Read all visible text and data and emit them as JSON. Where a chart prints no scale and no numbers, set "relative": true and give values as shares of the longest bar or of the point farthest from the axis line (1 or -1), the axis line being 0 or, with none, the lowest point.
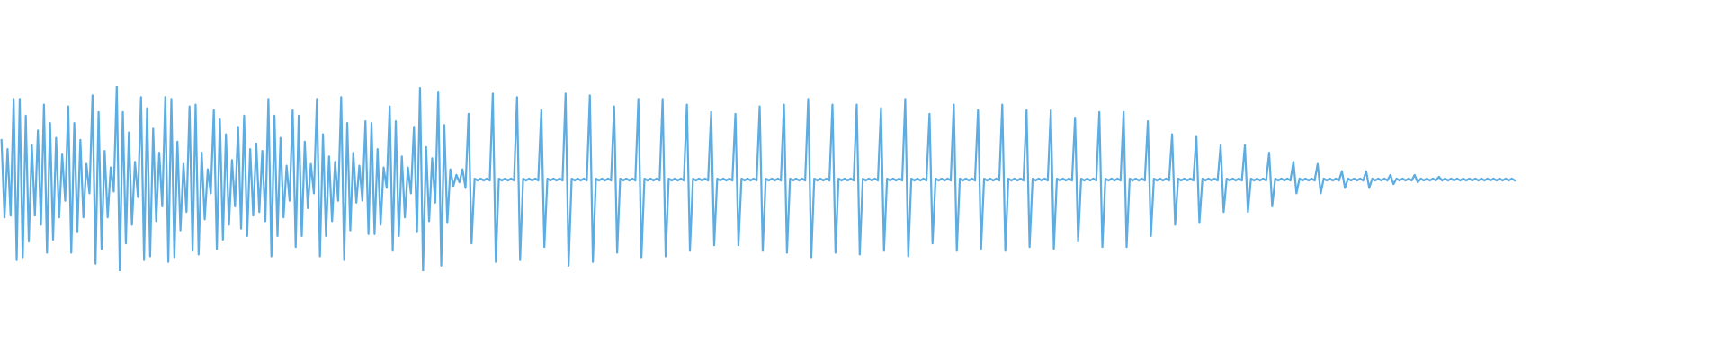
{
  "chart_data": {
    "type": "line",
    "relative": true,
    "color": "#5dade2",
    "categories": [
      null,
      null,
      null,
      null,
      null,
      null,
      null,
      null,
      null,
      null,
      null,
      null,
      null,
      null,
      null,
      null,
      null,
      null,
      null,
      null,
      null,
      null,
      null,
      null,
      null,
      null,
      null,
      null,
      null,
      null,
      null,
      null,
      null,
      null,
      null,
      null,
      null,
      null,
      null,
      null,
      null,
      null,
      null,
      null,
      null,
      null,
      null,
      null,
      null,
      null,
      null,
      null,
      null,
      null,
      null,
      null,
      null,
      null,
      null,
      null,
      null,
      null,
      null,
      null,
      null,
      null,
      null,
      null,
      null,
      null,
      null,
      null,
      null,
      null,
      null,
      null,
      null,
      null,
      null,
      null,
      null,
      null,
      null,
      null,
      null,
      null,
      null,
      null,
      null,
      null,
      null,
      null,
      null,
      null,
      null,
      null,
      null,
      null,
      null,
      null,
      null,
      null,
      null,
      null,
      null,
      null,
      null,
      null,
      null,
      null,
      null,
      null,
      null,
      null,
      null,
      null,
      null,
      null,
      null,
      null,
      null,
      null,
      null,
      null,
      null,
      null,
      null,
      null,
      null,
      null,
      null,
      null,
      null,
      null,
      null,
      null,
      null,
      null,
      null,
      null,
      null,
      null,
      null,
      null,
      null,
      null,
      null,
      null,
      null,
      null,
      null,
      null,
      null,
      null,
      null,
      null,
      null,
      null,
      null,
      null,
      null,
      null,
      null,
      null,
      null,
      null,
      null,
      null,
      null,
      null,
      null,
      null,
      null,
      null,
      null,
      null,
      null,
      null,
      null,
      null,
      null,
      null,
      null,
      null,
      null,
      null,
      null,
      null,
      null,
      null,
      null,
      null,
      null,
      null,
      null,
      null,
      null,
      null,
      null,
      null,
      null,
      null,
      null,
      null,
      null,
      null,
      null,
      null,
      null,
      null,
      null,
      null,
      null,
      null,
      null,
      null,
      null,
      null,
      null,
      null,
      null,
      null,
      null,
      null,
      null,
      null,
      null,
      null,
      null,
      null,
      null,
      null,
      null,
      null,
      null,
      null,
      null,
      null,
      null,
      null,
      null,
      null,
      null,
      null,
      null,
      null,
      null,
      null,
      null,
      null,
      null,
      null,
      null,
      null,
      null,
      null,
      null,
      null,
      null,
      null,
      null,
      null,
      null,
      null,
      null,
      null,
      null,
      null,
      null,
      null,
      null,
      null,
      null,
      null,
      null,
      null,
      null,
      null,
      null,
      null,
      null,
      null,
      null,
      null,
      null,
      null,
      null,
      null,
      null,
      null,
      null,
      null,
      null,
      null,
      null,
      null,
      null,
      null,
      null,
      null,
      null,
      null,
      null,
      null,
      null,
      null,
      null,
      null,
      null,
      null,
      null,
      null,
      null,
      null,
      null,
      null,
      null,
      null,
      null,
      null,
      null,
      null,
      null,
      null,
      null,
      null,
      null,
      null,
      null,
      null,
      null,
      null,
      null,
      null,
      null,
      null,
      null,
      null,
      null,
      null,
      null,
      null,
      null,
      null,
      null,
      null,
      null,
      null,
      null,
      null,
      null,
      null,
      null,
      null,
      null,
      null,
      null,
      null,
      null,
      null,
      null,
      null,
      null,
      null,
      null,
      null,
      null,
      null,
      null,
      null,
      null,
      null,
      null,
      null,
      null,
      null,
      null,
      null,
      null,
      null,
      null,
      null,
      null,
      null,
      null,
      null,
      null,
      null,
      null,
      null,
      null,
      null,
      null,
      null,
      null,
      null,
      null,
      null,
      null,
      null,
      null,
      null,
      null,
      null,
      null,
      null,
      null,
      null,
      null,
      null,
      null,
      null,
      null,
      null,
      null,
      null,
      null,
      null,
      null,
      null,
      null,
      null,
      null,
      null,
      null,
      null,
      null,
      null,
      null,
      null,
      null,
      null,
      null,
      null,
      null,
      null,
      null,
      null,
      null,
      null,
      null,
      null,
      null,
      null,
      null,
      null,
      null,
      null,
      null,
      null,
      null,
      null,
      null,
      null,
      null,
      null,
      null,
      null,
      null,
      null,
      null,
      null,
      null,
      null,
      null,
      null,
      null,
      null,
      null,
      null,
      null,
      null,
      null,
      null,
      null,
      null,
      null,
      null,
      null,
      null,
      null,
      null,
      null,
      null,
      null,
      null,
      null,
      null,
      null,
      null,
      null,
      null,
      null,
      null,
      null,
      null,
      null,
      null,
      null,
      null
    ],
    "values": [
      0.71,
      0.29,
      0.66,
      0.3,
      0.93,
      0.06,
      0.93,
      0.07,
      0.84,
      0.16,
      0.68,
      0.3,
      0.76,
      0.25,
      0.9,
      0.1,
      0.8,
      0.17,
      0.72,
      0.29,
      0.63,
      0.38,
      0.89,
      0.1,
      0.8,
      0.21,
      0.71,
      0.29,
      0.58,
      0.42,
      0.95,
      0.04,
      0.86,
      0.12,
      0.65,
      0.29,
      0.56,
      0.43,
      1.0,
      0,
      0.86,
      0.15,
      0.75,
      0.25,
      0.59,
      0.4,
      0.94,
      0.06,
      0.88,
      0.08,
      0.77,
      0.27,
      0.64,
      0.35,
      0.94,
      0.05,
      0.93,
      0.07,
      0.7,
      0.22,
      0.58,
      0.32,
      0.89,
      0.11,
      0.9,
      0.09,
      0.64,
      0.28,
      0.55,
      0.42,
      0.87,
      0.12,
      0.82,
      0.17,
      0.74,
      0.25,
      0.6,
      0.35,
      0.78,
      0.23,
      0.84,
      0.19,
      0.66,
      0.3,
      0.69,
      0.32,
      0.65,
      0.27,
      0.93,
      0.08,
      0.84,
      0.19,
      0.72,
      0.29,
      0.57,
      0.38,
      0.87,
      0.13,
      0.84,
      0.19,
      0.7,
      0.34,
      0.58,
      0.42,
      0.93,
      0.08,
      0.74,
      0.19,
      0.62,
      0.27,
      0.59,
      0.38,
      0.94,
      0.06,
      0.8,
      0.22,
      0.64,
      0.37,
      0.57,
      0.38,
      0.81,
      0.2,
      0.8,
      0.2,
      0.66,
      0.25,
      0.56,
      0.45,
      0.89,
      0.11,
      0.81,
      0.19,
      0.62,
      0.29,
      0.56,
      0.42,
      0.78,
      0.21,
      0.99,
      0,
      0.67,
      0.27,
      0.61,
      0.37,
      0.97,
      0.03,
      0.79,
      0.26,
      0.55,
      0.46,
      0.52,
      0.48,
      0.55,
      0.45,
      0.85,
      0.15,
      0.5,
      0.49,
      0.5,
      0.49,
      0.5,
      0.49,
      0.96,
      0.05,
      0.5,
      0.49,
      0.5,
      0.49,
      0.5,
      0.49,
      0.94,
      0.06,
      0.5,
      0.49,
      0.5,
      0.49,
      0.5,
      0.49,
      0.87,
      0.13,
      0.5,
      0.49,
      0.5,
      0.49,
      0.5,
      0.49,
      0.96,
      0.03,
      0.5,
      0.49,
      0.5,
      0.49,
      0.5,
      0.49,
      0.95,
      0.05,
      0.5,
      0.49,
      0.5,
      0.49,
      0.5,
      0.49,
      0.89,
      0.1,
      0.5,
      0.49,
      0.5,
      0.49,
      0.5,
      0.49,
      0.93,
      0.07,
      0.5,
      0.49,
      0.5,
      0.49,
      0.5,
      0.49,
      0.93,
      0.08,
      0.5,
      0.49,
      0.5,
      0.49,
      0.5,
      0.49,
      0.9,
      0.11,
      0.5,
      0.49,
      0.5,
      0.49,
      0.5,
      0.49,
      0.86,
      0.14,
      0.5,
      0.49,
      0.5,
      0.49,
      0.5,
      0.49,
      0.85,
      0.14,
      0.5,
      0.49,
      0.5,
      0.49,
      0.5,
      0.49,
      0.89,
      0.11,
      0.5,
      0.49,
      0.5,
      0.49,
      0.5,
      0.49,
      0.9,
      0.1,
      0.5,
      0.49,
      0.5,
      0.49,
      0.5,
      0.49,
      0.93,
      0.07,
      0.5,
      0.49,
      0.5,
      0.49,
      0.5,
      0.49,
      0.9,
      0.1,
      0.5,
      0.49,
      0.5,
      0.49,
      0.5,
      0.49,
      0.9,
      0.09,
      0.5,
      0.49,
      0.5,
      0.49,
      0.5,
      0.49,
      0.88,
      0.11,
      0.5,
      0.49,
      0.5,
      0.49,
      0.5,
      0.49,
      0.93,
      0.08,
      0.5,
      0.49,
      0.5,
      0.49,
      0.5,
      0.49,
      0.85,
      0.15,
      0.5,
      0.49,
      0.5,
      0.49,
      0.5,
      0.49,
      0.9,
      0.11,
      0.5,
      0.49,
      0.5,
      0.49,
      0.5,
      0.49,
      0.87,
      0.12,
      0.5,
      0.49,
      0.5,
      0.49,
      0.5,
      0.49,
      0.9,
      0.11,
      0.5,
      0.49,
      0.5,
      0.49,
      0.5,
      0.49,
      0.87,
      0.13,
      0.5,
      0.49,
      0.5,
      0.49,
      0.5,
      0.49,
      0.87,
      0.12,
      0.5,
      0.49,
      0.5,
      0.49,
      0.5,
      0.49,
      0.83,
      0.16,
      0.5,
      0.49,
      0.5,
      0.49,
      0.5,
      0.49,
      0.86,
      0.13,
      0.5,
      0.49,
      0.5,
      0.49,
      0.5,
      0.49,
      0.86,
      0.13,
      0.5,
      0.49,
      0.5,
      0.49,
      0.5,
      0.49,
      0.81,
      0.19,
      0.5,
      0.49,
      0.5,
      0.49,
      0.5,
      0.49,
      0.74,
      0.25,
      0.5,
      0.49,
      0.5,
      0.49,
      0.5,
      0.49,
      0.73,
      0.26,
      0.5,
      0.49,
      0.5,
      0.49,
      0.5,
      0.49,
      0.68,
      0.32,
      0.5,
      0.49,
      0.5,
      0.49,
      0.5,
      0.49,
      0.68,
      0.32,
      0.5,
      0.49,
      0.5,
      0.49,
      0.5,
      0.49,
      0.64,
      0.35,
      0.5,
      0.49,
      0.5,
      0.49,
      0.5,
      0.49,
      0.59,
      0.42,
      0.5,
      0.49,
      0.5,
      0.49,
      0.5,
      0.49,
      0.58,
      0.42,
      0.5,
      0.49,
      0.5,
      0.49,
      0.5,
      0.49,
      0.54,
      0.45,
      0.5,
      0.49,
      0.5,
      0.49,
      0.5,
      0.49,
      0.54,
      0.45,
      0.5,
      0.49,
      0.5,
      0.49,
      0.5,
      0.49,
      0.52,
      0.47,
      0.5,
      0.49,
      0.5,
      0.49,
      0.5,
      0.49,
      0.52,
      0.48,
      0.5,
      0.49,
      0.5,
      0.49,
      0.5,
      0.49,
      0.51,
      0.49,
      0.5,
      0.49,
      0.5,
      0.49,
      0.5,
      0.49,
      0.5,
      0.49,
      0.5,
      0.49,
      0.5,
      0.49,
      0.5,
      0.49,
      0.5,
      0.49,
      0.5,
      0.49,
      0.5,
      0.49,
      0.5,
      0.49,
      0.5,
      0.49
    ]
  }
}
